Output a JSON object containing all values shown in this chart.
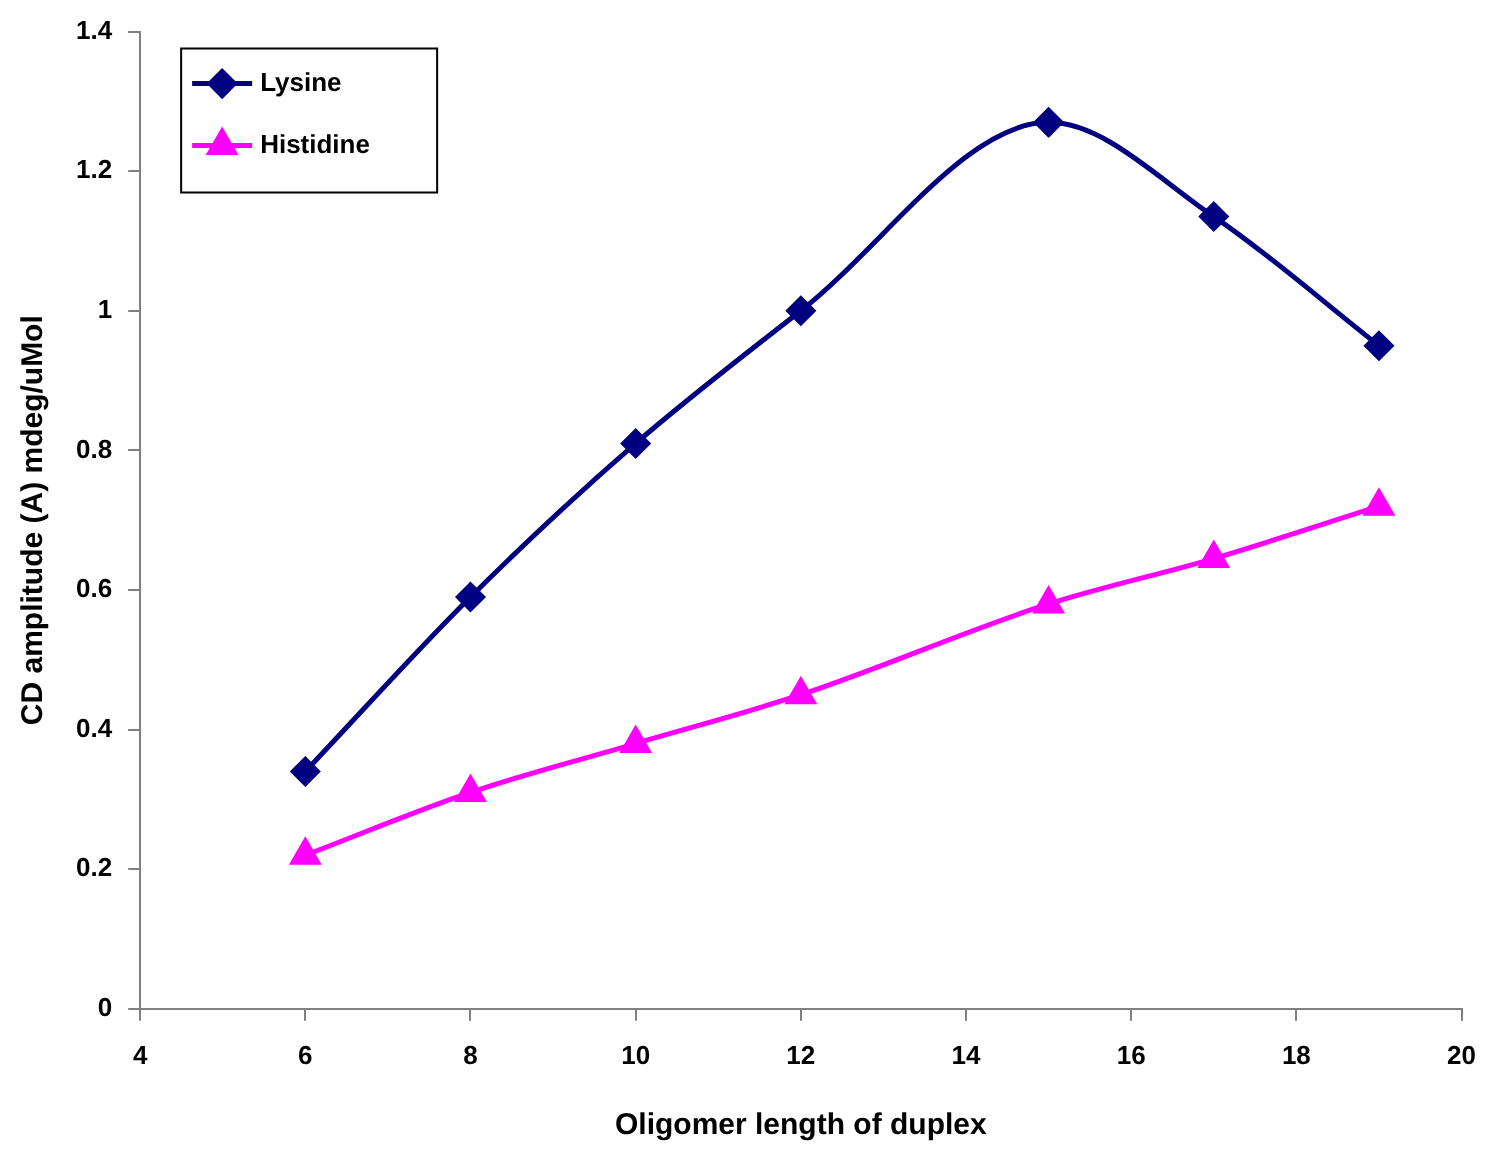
{
  "chart_data": {
    "type": "line",
    "xlabel": "Oligomer length of duplex",
    "ylabel": "CD amplitude (A) mdeg/uMol",
    "x": [
      6,
      8,
      10,
      12,
      15,
      17,
      19
    ],
    "series": [
      {
        "name": "Lysine",
        "color": "#000080",
        "marker": "diamond",
        "values": [
          0.34,
          0.59,
          0.81,
          1.0,
          1.27,
          1.135,
          0.95
        ]
      },
      {
        "name": "Histidine",
        "color": "#ff00ff",
        "marker": "triangle",
        "values": [
          0.22,
          0.31,
          0.38,
          0.45,
          0.58,
          0.645,
          0.72
        ]
      }
    ],
    "xlim": [
      4,
      20
    ],
    "xticks": [
      4,
      6,
      8,
      10,
      12,
      14,
      16,
      18,
      20
    ],
    "ylim": [
      0,
      1.4
    ],
    "yticks": [
      0,
      0.2,
      0.4,
      0.6,
      0.8,
      1,
      1.2,
      1.4
    ],
    "grid": false,
    "legend": "top left"
  }
}
